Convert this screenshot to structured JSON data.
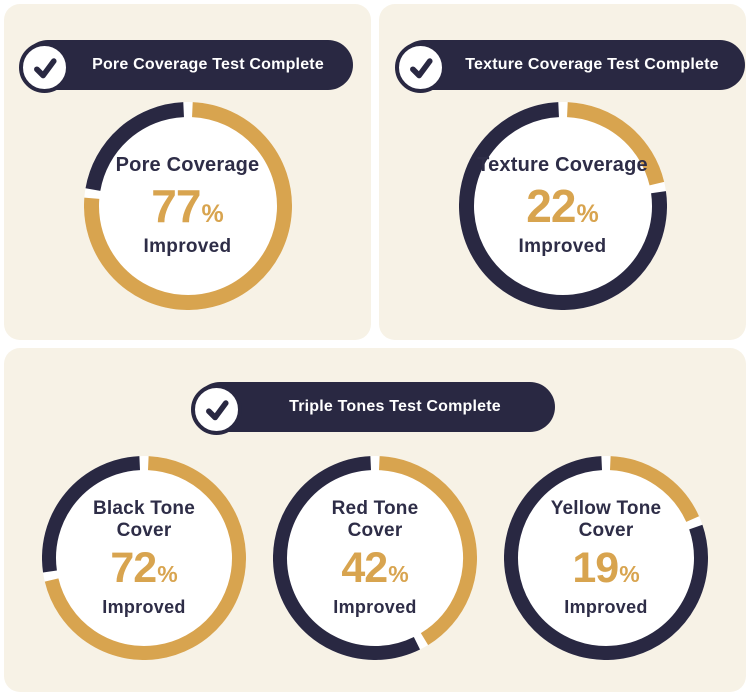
{
  "colors": {
    "page_bg": "#ffffff",
    "panel_bg": "#f7f2e6",
    "navy": "#292842",
    "gold": "#d8a44f",
    "text_dark": "#2e2d47",
    "badge_text": "#ffffff",
    "donut_inner": "#ffffff"
  },
  "panels": {
    "pore": {
      "badge_label": "Pore Coverage Test Complete",
      "check_icon": "check-icon",
      "donut": {
        "title": "Pore Coverage",
        "percent": 77,
        "suffix": "%",
        "caption": "Improved"
      }
    },
    "texture": {
      "badge_label": "Texture Coverage Test Complete",
      "check_icon": "check-icon",
      "donut": {
        "title": "Texture Coverage",
        "percent": 22,
        "suffix": "%",
        "caption": "Improved"
      }
    },
    "triple": {
      "badge_label": "Triple Tones Test Complete",
      "check_icon": "check-icon",
      "donuts": [
        {
          "title_line1": "Black Tone",
          "title_line2": "Cover",
          "percent": 72,
          "suffix": "%",
          "caption": "Improved"
        },
        {
          "title_line1": "Red Tone",
          "title_line2": "Cover",
          "percent": 42,
          "suffix": "%",
          "caption": "Improved"
        },
        {
          "title_line1": "Yellow Tone",
          "title_line2": "Cover",
          "percent": 19,
          "suffix": "%",
          "caption": "Improved"
        }
      ]
    }
  },
  "chart_data": [
    {
      "type": "pie",
      "variant": "donut",
      "section_title": "Pore Coverage Test Complete",
      "title": "Pore Coverage",
      "labels": [
        "Improved",
        "Remaining"
      ],
      "values": [
        77,
        23
      ],
      "unit": "%",
      "colors": [
        "#d8a44f",
        "#292842"
      ],
      "start_angle_deg": 0,
      "direction": "clockwise",
      "center_text": [
        "Pore Coverage",
        "77%",
        "Improved"
      ]
    },
    {
      "type": "pie",
      "variant": "donut",
      "section_title": "Texture Coverage Test Complete",
      "title": "Texture Coverage",
      "labels": [
        "Improved",
        "Remaining"
      ],
      "values": [
        22,
        78
      ],
      "unit": "%",
      "colors": [
        "#d8a44f",
        "#292842"
      ],
      "start_angle_deg": 0,
      "direction": "clockwise",
      "center_text": [
        "Texture Coverage",
        "22%",
        "Improved"
      ]
    },
    {
      "type": "pie",
      "variant": "donut",
      "section_title": "Triple Tones Test Complete",
      "title": "Black Tone Cover",
      "labels": [
        "Improved",
        "Remaining"
      ],
      "values": [
        72,
        28
      ],
      "unit": "%",
      "colors": [
        "#d8a44f",
        "#292842"
      ],
      "start_angle_deg": 0,
      "direction": "clockwise",
      "center_text": [
        "Black Tone Cover",
        "72%",
        "Improved"
      ]
    },
    {
      "type": "pie",
      "variant": "donut",
      "section_title": "Triple Tones Test Complete",
      "title": "Red Tone Cover",
      "labels": [
        "Improved",
        "Remaining"
      ],
      "values": [
        42,
        58
      ],
      "unit": "%",
      "colors": [
        "#d8a44f",
        "#292842"
      ],
      "start_angle_deg": 0,
      "direction": "clockwise",
      "center_text": [
        "Red Tone Cover",
        "42%",
        "Improved"
      ]
    },
    {
      "type": "pie",
      "variant": "donut",
      "section_title": "Triple Tones Test Complete",
      "title": "Yellow Tone Cover",
      "labels": [
        "Improved",
        "Remaining"
      ],
      "values": [
        19,
        81
      ],
      "unit": "%",
      "colors": [
        "#d8a44f",
        "#292842"
      ],
      "start_angle_deg": 0,
      "direction": "clockwise",
      "center_text": [
        "Yellow Tone Cover",
        "19%",
        "Improved"
      ]
    }
  ]
}
